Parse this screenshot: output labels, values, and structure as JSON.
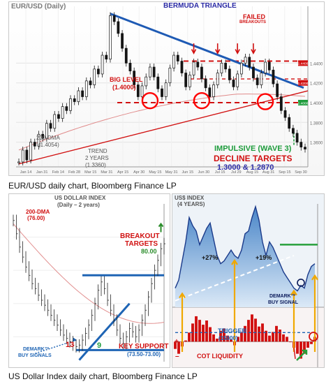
{
  "chart_data": [
    {
      "type": "candlestick",
      "title": "EUR/USD (Daily)",
      "caption": "EUR/USD daily chart, Bloomberg Finance LP",
      "x_ticks": [
        "Jan 14",
        "Jan 31",
        "Feb 14",
        "Feb 28",
        "Mar 15",
        "Mar 31",
        "Apr 15",
        "Apr 30",
        "May 15",
        "May 31",
        "Jun 15",
        "Jun 30",
        "Jul 15",
        "Jul 29",
        "Aug 15",
        "Aug 31",
        "Sep 15",
        "Sep 30"
      ],
      "y_ticks": [
        "1.4400",
        "1.4200",
        "1.4000",
        "1.3800",
        "1.3600"
      ],
      "ylim": [
        1.335,
        1.4975
      ],
      "series": [
        {
          "values": [
            1.34,
            1.352,
            1.342,
            1.36,
            1.356,
            1.368,
            1.364,
            1.379,
            1.374,
            1.388,
            1.384,
            1.396,
            1.392,
            1.404,
            1.401,
            1.412,
            1.406,
            1.422,
            1.418,
            1.434,
            1.429,
            1.448,
            1.444,
            1.488,
            1.482,
            1.47,
            1.455,
            1.44,
            1.432,
            1.418,
            1.406,
            1.417,
            1.426,
            1.436,
            1.426,
            1.414,
            1.406,
            1.42,
            1.435,
            1.448,
            1.442,
            1.43,
            1.416,
            1.428,
            1.441,
            1.436,
            1.424,
            1.415,
            1.406,
            1.418,
            1.43,
            1.44,
            1.434,
            1.423,
            1.416,
            1.429,
            1.44,
            1.446,
            1.436,
            1.425,
            1.418,
            1.43,
            1.441,
            1.433,
            1.419,
            1.406,
            1.392,
            1.385,
            1.374,
            1.369,
            1.36,
            1.355,
            1.353
          ]
        }
      ],
      "annotations": {
        "bermuda": "BERMUDA TRIANGLE",
        "failed": "FAILED",
        "breakouts": "BREAKOUTS",
        "big_level": "BIG LEVEL",
        "big_level_value": "(1.4000)",
        "dma": "200-DMA",
        "dma_value": "(1.4054)",
        "trend": "TREND",
        "trend_years": "2 YEARS",
        "trend_value": "(1.3360)",
        "impulsive": "IMPULSIVE (WAVE 3)",
        "decline": "DECLINE TARGETS",
        "targets": "1.3000 & 1.2870"
      },
      "price_tags": [
        "1.4400",
        "1.4200",
        "1.4000"
      ],
      "colors": {
        "price": "#151515",
        "resistance": "#d11010",
        "trend": "#d11010",
        "bermuda": "#1e5ab4",
        "impulsive": "#1e9c3c",
        "title": "#7a7a7a",
        "bermuda_label": "#2a2aa5",
        "circles": "#ff0000"
      }
    },
    {
      "type": "bar",
      "title": "US DOLLAR INDEX",
      "subtitle": "(Daily – 2 years)",
      "caption": "US Dollar Index daily chart, Bloomberg Finance LP",
      "ylim": [
        72.5,
        82
      ],
      "series": [
        {
          "values": [
            81.0,
            80.2,
            79.4,
            78.8,
            78.2,
            77.7,
            77.2,
            76.9,
            76.5,
            76.2,
            75.9,
            75.6,
            75.3,
            75.0,
            74.7,
            74.4,
            74.1,
            73.9,
            73.7,
            73.5,
            73.4,
            73.5,
            73.8,
            74.2,
            74.7,
            75.3,
            76.0,
            76.8,
            77.3,
            76.9,
            76.2,
            75.6,
            75.0,
            74.4,
            73.9,
            73.6,
            74.0,
            74.5,
            74.3,
            74.0,
            74.4,
            75.0,
            75.6,
            76.4,
            77.2,
            78.0,
            78.6,
            79.3,
            79.6
          ]
        }
      ],
      "annotations": {
        "dma": "200-DMA",
        "dma_value": "(76.00)",
        "breakout": "BREAKOUT",
        "targets_label": "TARGETS",
        "target_value": "80.00",
        "key_support": "KEY SUPPORT",
        "key_support_value": "(73.50-73.00)",
        "demark": "DEMARK™",
        "buy_signals": "BUY SIGNALS",
        "count_13": "13",
        "count_9": "9"
      },
      "colors": {
        "price": "#262626",
        "support": "#1e64b4",
        "dma": "#d11010",
        "breakout": "#d11010",
        "target": "#2a8c2a",
        "demark": "#1e64b4",
        "count_13": "#d11010",
        "count_9": "#1e9c3c"
      }
    },
    {
      "type": "area",
      "title": "US$ INDEX",
      "subtitle": "(4 YEARS)",
      "ylim": [
        71,
        90
      ],
      "series": [
        {
          "values": [
            74.5,
            76.0,
            79.5,
            83.0,
            87.5,
            86.0,
            85.0,
            82.5,
            84.0,
            85.5,
            86.5,
            83.5,
            80.5,
            79.0,
            79.5,
            80.5,
            81.5,
            80.5,
            80.0,
            81.5,
            84.5,
            85.0,
            87.5,
            89.5,
            87.0,
            83.0,
            80.5,
            83.0,
            82.0,
            80.5,
            79.0,
            77.5,
            76.5,
            75.5,
            74.5,
            74.0,
            75.0,
            74.5,
            77.0,
            78.5,
            79.0
          ]
        }
      ],
      "annotations": {
        "gain_1": "+27%",
        "gain_2": "+19%",
        "demark": "DEMARK™",
        "buy_signal": "BUY SIGNAL"
      },
      "colors": {
        "area_top": "#4a86c8",
        "area_bottom": "#dbe9f7",
        "line": "#1a3a8a",
        "trend": "#ffffff",
        "arrows": "#f0a800",
        "target": "#27a03c",
        "circle": "#0a1a5a"
      }
    },
    {
      "type": "bar",
      "title": "COT LIQUIDITY",
      "ylim": [
        -40000,
        50000
      ],
      "series": [
        {
          "values": [
            -12000,
            -20000,
            -8000,
            2000,
            15000,
            30000,
            42000,
            36000,
            28000,
            35000,
            24000,
            12000,
            5000,
            18000,
            22000,
            10000,
            4000,
            -6000,
            8000,
            16000,
            26000,
            36000,
            45000,
            38000,
            25000,
            30000,
            18000,
            10000,
            16000,
            26000,
            20000,
            12000,
            8000,
            0,
            -10000,
            -20000,
            -28000,
            -20000,
            -10000,
            -4000,
            8000
          ]
        }
      ],
      "annotations": {
        "trigger": "TRIGGER",
        "trigger_value": "(15000)",
        "plus": "+",
        "minus": "–"
      },
      "colors": {
        "bars": "#d11010",
        "trigger": "#1e64b4",
        "arrows": "#27a03c",
        "circle": "#d11010"
      }
    }
  ]
}
